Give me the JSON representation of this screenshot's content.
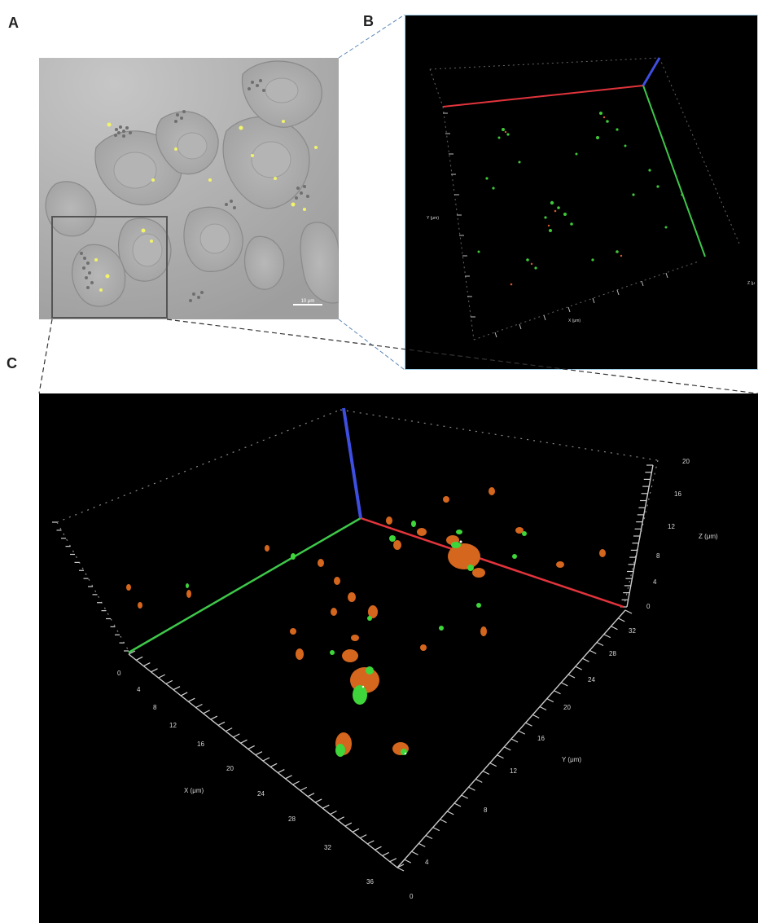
{
  "panels": {
    "a": {
      "label": "A",
      "scalebar_text": "10 μm"
    },
    "b": {
      "label": "B",
      "y_axis_label": "Y (μm)",
      "x_axis_label": "X (μm)",
      "z_axis_label": "Z (μ"
    },
    "c": {
      "label": "C",
      "x_axis_label": "X (μm)",
      "y_axis_label": "Y (μm)",
      "z_axis_label": "Z (μm)",
      "x_ticks": [
        "0",
        "4",
        "8",
        "12",
        "16",
        "20",
        "24",
        "28",
        "32",
        "36"
      ],
      "y_ticks": [
        "0",
        "4",
        "8",
        "12",
        "16",
        "20",
        "24",
        "28",
        "32"
      ],
      "z_ticks": [
        "0",
        "4",
        "8",
        "12",
        "16",
        "20"
      ]
    }
  },
  "colors": {
    "x_axis": "#e2343c",
    "y_axis": "#3ec84a",
    "z_axis": "#3e4ee0",
    "signal_red": "#e0562a",
    "signal_green": "#3ed63a",
    "connector": "#333333",
    "connector_blue": "#5a86b8"
  }
}
